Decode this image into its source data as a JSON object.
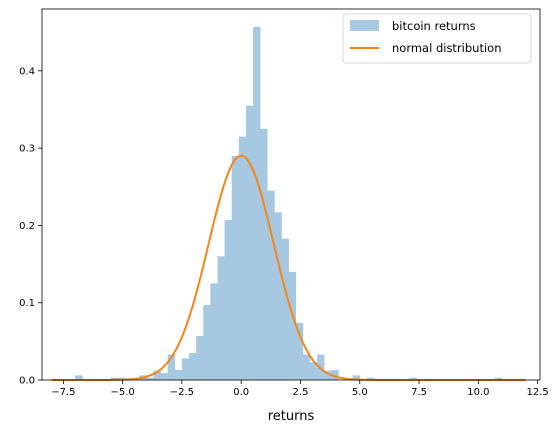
{
  "chart_data": {
    "type": "bar",
    "xlabel": "returns",
    "ylabel": "",
    "xlim": [
      -8.4,
      12.6
    ],
    "ylim": [
      0,
      0.48
    ],
    "grid": false,
    "legend_position": "top-right",
    "x_ticks": [
      {
        "value": -7.5,
        "label": "−7.5"
      },
      {
        "value": -5.0,
        "label": "−5.0"
      },
      {
        "value": -2.5,
        "label": "−2.5"
      },
      {
        "value": 0.0,
        "label": "0.0"
      },
      {
        "value": 2.5,
        "label": "2.5"
      },
      {
        "value": 5.0,
        "label": "5.0"
      },
      {
        "value": 7.5,
        "label": "7.5"
      },
      {
        "value": 10.0,
        "label": "10.0"
      },
      {
        "value": 12.5,
        "label": "12.5"
      }
    ],
    "y_ticks": [
      {
        "value": 0.0,
        "label": "0.0"
      },
      {
        "value": 0.1,
        "label": "0.1"
      },
      {
        "value": 0.2,
        "label": "0.2"
      },
      {
        "value": 0.3,
        "label": "0.3"
      },
      {
        "value": 0.4,
        "label": "0.4"
      }
    ],
    "series": [
      {
        "name": "bitcoin returns",
        "kind": "histogram",
        "color": "#a6c8e0",
        "bin_width": 0.3,
        "bins": [
          [
            -7.0,
            0.006
          ],
          [
            -5.5,
            0.003
          ],
          [
            -5.2,
            0.003
          ],
          [
            -4.3,
            0.006
          ],
          [
            -4.0,
            0.003
          ],
          [
            -3.7,
            0.012
          ],
          [
            -3.4,
            0.009
          ],
          [
            -3.1,
            0.033
          ],
          [
            -2.8,
            0.013
          ],
          [
            -2.5,
            0.028
          ],
          [
            -2.2,
            0.035
          ],
          [
            -1.9,
            0.057
          ],
          [
            -1.6,
            0.097
          ],
          [
            -1.3,
            0.125
          ],
          [
            -1.0,
            0.16
          ],
          [
            -0.7,
            0.207
          ],
          [
            -0.4,
            0.29
          ],
          [
            -0.1,
            0.315
          ],
          [
            0.2,
            0.355
          ],
          [
            0.5,
            0.457
          ],
          [
            0.8,
            0.325
          ],
          [
            1.1,
            0.245
          ],
          [
            1.4,
            0.217
          ],
          [
            1.7,
            0.183
          ],
          [
            2.0,
            0.14
          ],
          [
            2.3,
            0.074
          ],
          [
            2.6,
            0.033
          ],
          [
            2.9,
            0.023
          ],
          [
            3.2,
            0.033
          ],
          [
            3.5,
            0.012
          ],
          [
            3.8,
            0.013
          ],
          [
            4.7,
            0.006
          ],
          [
            5.3,
            0.003
          ],
          [
            7.1,
            0.003
          ],
          [
            10.7,
            0.003
          ]
        ]
      },
      {
        "name": "normal distribution",
        "kind": "line",
        "color": "#f58518",
        "mean": 0.0,
        "std": 1.375,
        "x_range": [
          -8.0,
          12.0
        ]
      }
    ]
  }
}
